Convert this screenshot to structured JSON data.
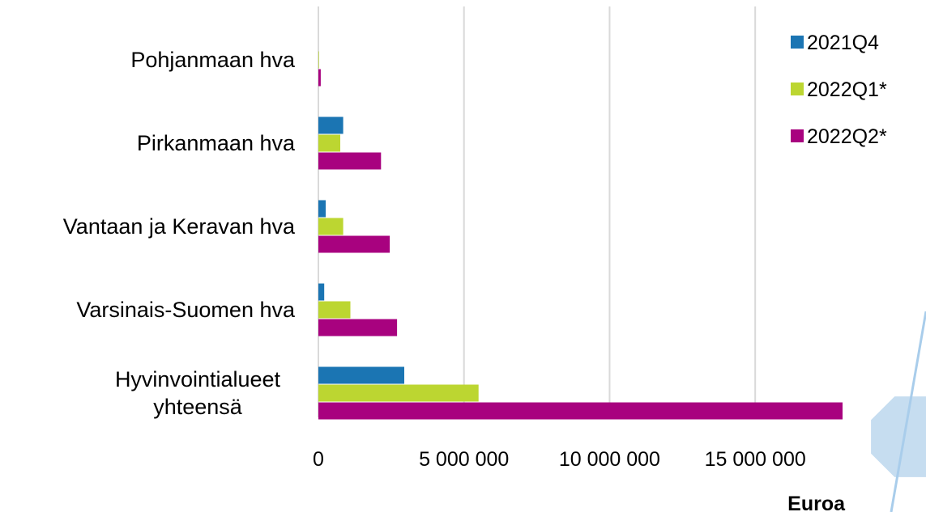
{
  "chart_data": {
    "type": "bar",
    "orientation": "horizontal",
    "categories": [
      "Pohjanmaan hva",
      "Pirkanmaan hva",
      "Vantaan ja Keravan hva",
      "Varsinais-Suomen hva",
      "Hyvinvointialueet yhteensä"
    ],
    "category_label_lines": [
      [
        "Pohjanmaan hva"
      ],
      [
        "Pirkanmaan hva"
      ],
      [
        "Vantaan ja Keravan hva"
      ],
      [
        "Varsinais-Suomen hva"
      ],
      [
        "Hyvinvointialueet",
        "yhteensä"
      ]
    ],
    "series": [
      {
        "name": "2021Q4",
        "color": "#1B75B3",
        "values": [
          0,
          850000,
          250000,
          200000,
          2950000
        ]
      },
      {
        "name": "2022Q1*",
        "color": "#BCD631",
        "values": [
          20000,
          750000,
          850000,
          1100000,
          5500000
        ]
      },
      {
        "name": "2022Q2*",
        "color": "#A8027F",
        "values": [
          80000,
          2150000,
          2450000,
          2700000,
          18000000
        ]
      }
    ],
    "xlim": [
      0,
      18000000
    ],
    "xticks": [
      0,
      5000000,
      10000000,
      15000000
    ],
    "xtick_labels": [
      "0",
      "5 000 000",
      "10 000 000",
      "15 000 000"
    ],
    "xlabel": "Euroa",
    "ylabel": "",
    "grid": true,
    "legend_position": "top-right"
  },
  "decoration": {
    "shape_color": "#C6DDF0",
    "line_color": "#A9CDEB"
  }
}
